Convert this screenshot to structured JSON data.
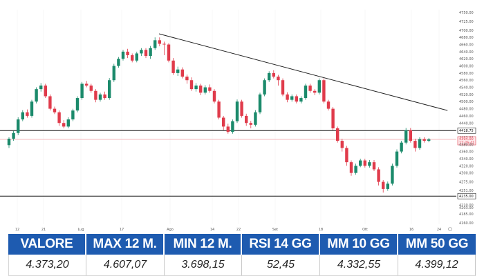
{
  "chart_data": {
    "type": "candlestick",
    "yticks": [
      "4750.00",
      "4725.00",
      "4700.00",
      "4680.00",
      "4660.00",
      "4640.00",
      "4620.00",
      "4600.00",
      "4580.00",
      "4560.00",
      "4540.00",
      "4520.00",
      "4500.00",
      "4480.00",
      "4460.00",
      "4440.00",
      "4418.75",
      "4400.00",
      "4394.00",
      "4380.00",
      "4360.00",
      "4340.00",
      "4320.00",
      "4300.00",
      "4275.00",
      "4251.00",
      "4235.00",
      "4210.00",
      "4203.00",
      "4185.00",
      "4160.00"
    ],
    "xticks": [
      "12",
      "21",
      "Lug",
      "17",
      "Ago",
      "14",
      "22",
      "Set",
      "18",
      "Ott",
      "16",
      "24"
    ],
    "levels": {
      "resistance": {
        "value": 4418.75,
        "label": "4418.75"
      },
      "support": {
        "value": 4235.0,
        "label": "4235.00"
      },
      "last": {
        "value": 4394.0,
        "label": "4394.00",
        "sub": "17:25:41"
      }
    },
    "trendline": {
      "from": [
        0,
        4690
      ],
      "to": [
        82,
        4475
      ]
    },
    "candles": [
      [
        4378,
        4396,
        4370,
        4400
      ],
      [
        4396,
        4412,
        4390,
        4418
      ],
      [
        4412,
        4450,
        4406,
        4456
      ],
      [
        4450,
        4470,
        4445,
        4476
      ],
      [
        4470,
        4460,
        4455,
        4478
      ],
      [
        4460,
        4500,
        4455,
        4505
      ],
      [
        4500,
        4535,
        4495,
        4540
      ],
      [
        4535,
        4545,
        4528,
        4552
      ],
      [
        4545,
        4515,
        4510,
        4550
      ],
      [
        4515,
        4480,
        4475,
        4520
      ],
      [
        4480,
        4470,
        4465,
        4486
      ],
      [
        4470,
        4440,
        4432,
        4475
      ],
      [
        4440,
        4430,
        4425,
        4448
      ],
      [
        4430,
        4450,
        4425,
        4456
      ],
      [
        4450,
        4475,
        4445,
        4480
      ],
      [
        4475,
        4510,
        4470,
        4515
      ],
      [
        4510,
        4550,
        4505,
        4555
      ],
      [
        4550,
        4545,
        4540,
        4558
      ],
      [
        4545,
        4530,
        4525,
        4550
      ],
      [
        4530,
        4505,
        4498,
        4535
      ],
      [
        4505,
        4520,
        4500,
        4525
      ],
      [
        4520,
        4510,
        4505,
        4528
      ],
      [
        4510,
        4560,
        4505,
        4566
      ],
      [
        4560,
        4600,
        4555,
        4606
      ],
      [
        4600,
        4620,
        4595,
        4625
      ],
      [
        4620,
        4640,
        4615,
        4645
      ],
      [
        4640,
        4630,
        4622,
        4648
      ],
      [
        4630,
        4615,
        4610,
        4635
      ],
      [
        4615,
        4635,
        4610,
        4640
      ],
      [
        4635,
        4645,
        4628,
        4650
      ],
      [
        4645,
        4628,
        4622,
        4650
      ],
      [
        4628,
        4650,
        4620,
        4656
      ],
      [
        4650,
        4672,
        4645,
        4680
      ],
      [
        4672,
        4662,
        4655,
        4680
      ],
      [
        4662,
        4660,
        4630,
        4668
      ],
      [
        4660,
        4615,
        4610,
        4664
      ],
      [
        4615,
        4580,
        4575,
        4622
      ],
      [
        4580,
        4590,
        4572,
        4598
      ],
      [
        4590,
        4570,
        4565,
        4596
      ],
      [
        4570,
        4560,
        4550,
        4576
      ],
      [
        4560,
        4535,
        4530,
        4568
      ],
      [
        4535,
        4545,
        4528,
        4552
      ],
      [
        4545,
        4525,
        4518,
        4550
      ],
      [
        4525,
        4540,
        4520,
        4546
      ],
      [
        4540,
        4530,
        4525,
        4548
      ],
      [
        4530,
        4500,
        4495,
        4535
      ],
      [
        4500,
        4455,
        4450,
        4505
      ],
      [
        4455,
        4430,
        4420,
        4460
      ],
      [
        4430,
        4415,
        4410,
        4438
      ],
      [
        4415,
        4445,
        4410,
        4450
      ],
      [
        4445,
        4500,
        4440,
        4506
      ],
      [
        4500,
        4460,
        4455,
        4505
      ],
      [
        4460,
        4440,
        4432,
        4466
      ],
      [
        4440,
        4435,
        4425,
        4446
      ],
      [
        4435,
        4470,
        4430,
        4476
      ],
      [
        4470,
        4520,
        4465,
        4525
      ],
      [
        4520,
        4560,
        4515,
        4565
      ],
      [
        4560,
        4580,
        4555,
        4585
      ],
      [
        4580,
        4570,
        4565,
        4588
      ],
      [
        4570,
        4560,
        4545,
        4575
      ],
      [
        4560,
        4520,
        4515,
        4565
      ],
      [
        4520,
        4505,
        4498,
        4526
      ],
      [
        4505,
        4515,
        4500,
        4520
      ],
      [
        4515,
        4500,
        4495,
        4520
      ],
      [
        4500,
        4510,
        4495,
        4515
      ],
      [
        4510,
        4545,
        4505,
        4550
      ],
      [
        4545,
        4530,
        4525,
        4550
      ],
      [
        4530,
        4525,
        4518,
        4535
      ],
      [
        4525,
        4560,
        4520,
        4565
      ],
      [
        4560,
        4500,
        4495,
        4565
      ],
      [
        4500,
        4480,
        4475,
        4505
      ],
      [
        4480,
        4425,
        4420,
        4485
      ],
      [
        4425,
        4390,
        4385,
        4430
      ],
      [
        4390,
        4370,
        4360,
        4396
      ],
      [
        4370,
        4330,
        4320,
        4376
      ],
      [
        4330,
        4300,
        4292,
        4335
      ],
      [
        4300,
        4320,
        4295,
        4326
      ],
      [
        4320,
        4335,
        4316,
        4340
      ],
      [
        4335,
        4320,
        4315,
        4340
      ],
      [
        4320,
        4330,
        4315,
        4336
      ],
      [
        4330,
        4310,
        4305,
        4336
      ],
      [
        4310,
        4275,
        4265,
        4316
      ],
      [
        4275,
        4255,
        4245,
        4280
      ],
      [
        4255,
        4270,
        4250,
        4276
      ],
      [
        4270,
        4320,
        4265,
        4326
      ],
      [
        4320,
        4360,
        4315,
        4366
      ],
      [
        4360,
        4385,
        4355,
        4390
      ],
      [
        4385,
        4420,
        4380,
        4426
      ],
      [
        4420,
        4390,
        4385,
        4426
      ],
      [
        4390,
        4370,
        4360,
        4396
      ],
      [
        4370,
        4395,
        4365,
        4400
      ],
      [
        4395,
        4390,
        4385,
        4400
      ],
      [
        4390,
        4394,
        4386,
        4398
      ]
    ]
  },
  "stats": {
    "headers": [
      "VALORE",
      "MAX 12 M.",
      "MIN 12 M.",
      "RSI 14 GG",
      "MM 10 GG",
      "MM 50 GG"
    ],
    "values": [
      "4.373,20",
      "4.607,07",
      "3.698,15",
      "52,45",
      "4.332,55",
      "4.399,12"
    ]
  },
  "colors": {
    "up": "#1b8a6b",
    "down": "#e03b4b",
    "header_bg": "#1e5bb0"
  }
}
